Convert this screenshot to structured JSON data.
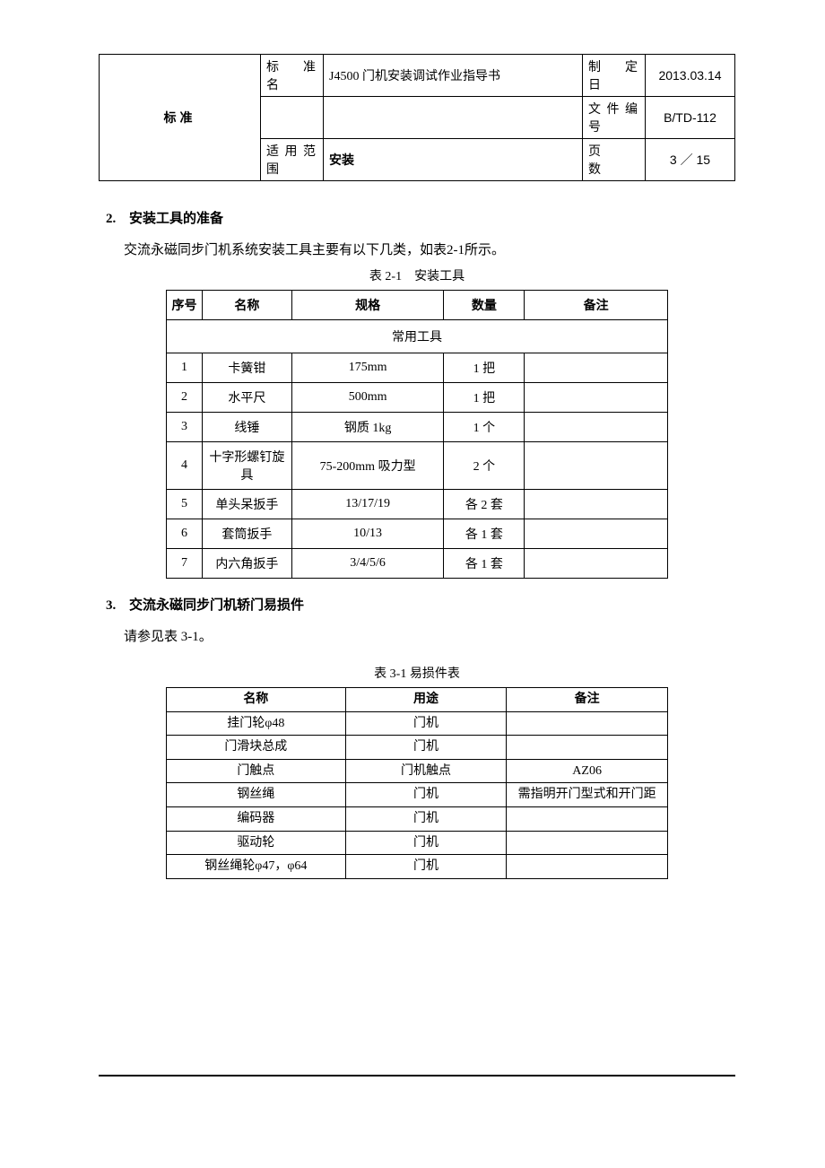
{
  "header": {
    "left_title": "标准",
    "name_label": "标 准 名",
    "name_value": "J4500 门机安装调试作业指导书",
    "scope_label": "适用范围",
    "scope_value": "安装",
    "date_label": "制 定 日",
    "date_value": "2013.03.14",
    "docnum_label": "文件编号",
    "docnum_value": "B/TD-112",
    "page_label": "页　　数",
    "page_value": "3 ／ 15"
  },
  "section2": {
    "num": "2.",
    "title": "安装工具的准备",
    "intro": "交流永磁同步门机系统安装工具主要有以下几类，如表2-1所示。",
    "caption": "表 2-1　安装工具",
    "headers": {
      "seq": "序号",
      "name": "名称",
      "spec": "规格",
      "qty": "数量",
      "remark": "备注"
    },
    "subhead": "常用工具",
    "rows": [
      {
        "seq": "1",
        "name": "卡簧钳",
        "spec": "175mm",
        "qty": "1 把",
        "remark": ""
      },
      {
        "seq": "2",
        "name": "水平尺",
        "spec": "500mm",
        "qty": "1 把",
        "remark": ""
      },
      {
        "seq": "3",
        "name": "线锤",
        "spec": "钢质 1kg",
        "qty": "1 个",
        "remark": ""
      },
      {
        "seq": "4",
        "name": "十字形螺钉旋具",
        "spec": "75-200mm 吸力型",
        "qty": "2 个",
        "remark": ""
      },
      {
        "seq": "5",
        "name": "单头呆扳手",
        "spec": "13/17/19",
        "qty": "各 2 套",
        "remark": ""
      },
      {
        "seq": "6",
        "name": "套筒扳手",
        "spec": "10/13",
        "qty": "各 1 套",
        "remark": ""
      },
      {
        "seq": "7",
        "name": "内六角扳手",
        "spec": "3/4/5/6",
        "qty": "各 1 套",
        "remark": ""
      }
    ]
  },
  "section3": {
    "num": "3.",
    "title": "交流永磁同步门机轿门易损件",
    "intro": "请参见表 3-1。",
    "caption": "表 3-1  易损件表",
    "headers": {
      "name": "名称",
      "use": "用途",
      "remark": "备注"
    },
    "rows": [
      {
        "name": "挂门轮φ48",
        "use": "门机",
        "remark": ""
      },
      {
        "name": "门滑块总成",
        "use": "门机",
        "remark": ""
      },
      {
        "name": "门触点",
        "use": "门机触点",
        "remark": "AZ06"
      },
      {
        "name": "钢丝绳",
        "use": "门机",
        "remark": "需指明开门型式和开门距"
      },
      {
        "name": "编码器",
        "use": "门机",
        "remark": ""
      },
      {
        "name": "驱动轮",
        "use": "门机",
        "remark": ""
      },
      {
        "name": "钢丝绳轮φ47，φ64",
        "use": "门机",
        "remark": ""
      }
    ]
  }
}
